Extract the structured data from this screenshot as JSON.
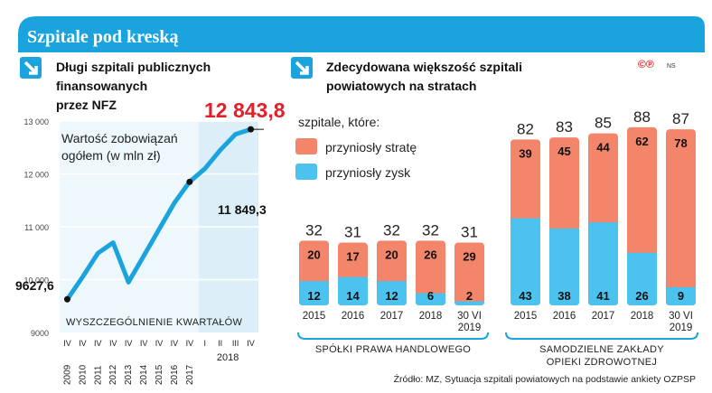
{
  "header": {
    "title": "Szpitale pod kreską",
    "copyright_mark": "©℗",
    "author": "NS",
    "brand_color": "#1aa3dc"
  },
  "left_panel": {
    "heading_lines": [
      "Długi szpitali publicznych",
      "finansowanych",
      "przez NFZ"
    ],
    "subtitle_lines": [
      "Wartość zobowiązań",
      "ogółem (w mln zł)"
    ],
    "footer_label": "WYSZCZEGÓLNIENIE KWARTAŁÓW",
    "highlight_value": "12 843,8",
    "annotation_2017": "11 849,3",
    "annotation_2009": "9627,6"
  },
  "right_panel": {
    "heading_lines": [
      "Zdecydowana większość szpitali",
      "powiatowych na stratach"
    ],
    "legend_title": "szpitale, które:",
    "legend": [
      {
        "label": "przyniosły stratę",
        "color": "#f2856a"
      },
      {
        "label": "przyniosły zysk",
        "color": "#4cc3ee"
      }
    ],
    "group_labels": [
      [
        "SPÓŁKI PRAWA HANDLOWEGO"
      ],
      [
        "SAMODZIELNE ZAKŁADY",
        "OPIEKI ZDROWOTNEJ"
      ]
    ]
  },
  "source": "Źródło: MZ, Sytuacja szpitali powiatowych na podstawie ankiety OZPSP",
  "chart_data": [
    {
      "type": "line",
      "title": "Długi szpitali publicznych finansowanych przez NFZ",
      "subtitle": "Wartość zobowiązań ogółem (w mln zł)",
      "xlabel": "WYSZCZEGÓLNIENIE KWARTAŁÓW",
      "ylim": [
        9000,
        13000
      ],
      "yticks": [
        9000,
        10000,
        11000,
        12000,
        13000
      ],
      "ytick_labels": [
        "9000",
        "10 000",
        "11 000",
        "12 000",
        "13 000"
      ],
      "x": [
        "IV 2009",
        "IV 2010",
        "IV 2011",
        "IV 2012",
        "IV 2013",
        "IV 2014",
        "IV 2015",
        "IV 2016",
        "IV 2017",
        "I 2018",
        "II 2018",
        "III 2018",
        "IV 2018"
      ],
      "x_quarter_labels": [
        "IV",
        "IV",
        "IV",
        "IV",
        "IV",
        "IV",
        "IV",
        "IV",
        "IV",
        "I",
        "II",
        "III",
        "IV"
      ],
      "x_year_labels": [
        "2009",
        "2010",
        "2011",
        "2012",
        "2013",
        "2014",
        "2015",
        "2016",
        "2017",
        "2018"
      ],
      "values": [
        9627.6,
        10050,
        10500,
        10700,
        9950,
        10450,
        10950,
        11450,
        11849.3,
        12100,
        12450,
        12750,
        12843.8
      ],
      "grid": true,
      "line_color": "#1aa3dc"
    },
    {
      "type": "bar",
      "subtype": "stacked",
      "categories": [
        "2015",
        "2016",
        "2017",
        "2018",
        "30 VI 2019",
        "2015",
        "2016",
        "2017",
        "2018",
        "30 VI 2019"
      ],
      "category_groups": [
        "SPÓŁKI PRAWA HANDLOWEGO",
        "SPÓŁKI PRAWA HANDLOWEGO",
        "SPÓŁKI PRAWA HANDLOWEGO",
        "SPÓŁKI PRAWA HANDLOWEGO",
        "SPÓŁKI PRAWA HANDLOWEGO",
        "SAMODZIELNE ZAKŁADY OPIEKI ZDROWOTNEJ",
        "SAMODZIELNE ZAKŁADY OPIEKI ZDROWOTNEJ",
        "SAMODZIELNE ZAKŁADY OPIEKI ZDROWOTNEJ",
        "SAMODZIELNE ZAKŁADY OPIEKI ZDROWOTNEJ",
        "SAMODZIELNE ZAKŁADY OPIEKI ZDROWOTNEJ"
      ],
      "series": [
        {
          "name": "przyniosły zysk",
          "values": [
            12,
            14,
            12,
            6,
            2,
            43,
            38,
            41,
            26,
            9
          ],
          "color": "#4cc3ee"
        },
        {
          "name": "przyniosły stratę",
          "values": [
            20,
            17,
            20,
            26,
            29,
            39,
            45,
            44,
            62,
            78
          ],
          "color": "#f2856a"
        }
      ],
      "totals": [
        32,
        31,
        32,
        32,
        31,
        82,
        83,
        85,
        88,
        87
      ],
      "legend": "top-left"
    }
  ]
}
